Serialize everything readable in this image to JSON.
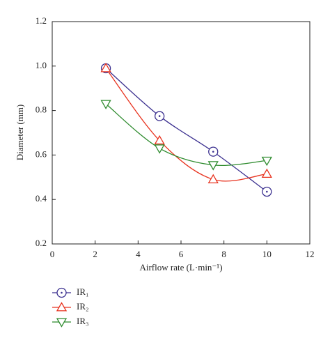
{
  "chart_data": {
    "type": "line",
    "xlabel": "Airflow rate (L·min⁻¹)",
    "ylabel": "Diameter (mm)",
    "x": [
      2.5,
      5,
      7.5,
      10
    ],
    "series": [
      {
        "name": "IR₁",
        "color": "#3a2f8f",
        "marker": "circle-dot",
        "values": [
          0.99,
          0.775,
          0.615,
          0.435
        ]
      },
      {
        "name": "IR₂",
        "color": "#e8321e",
        "marker": "triangle-up",
        "values": [
          0.99,
          0.665,
          0.49,
          0.515
        ]
      },
      {
        "name": "IR₃",
        "color": "#2e8b2e",
        "marker": "triangle-down",
        "values": [
          0.83,
          0.63,
          0.555,
          0.575
        ]
      }
    ],
    "xlim": [
      0,
      12
    ],
    "xticks": [
      0,
      2,
      4,
      6,
      8,
      10,
      12
    ],
    "ylim": [
      0.2,
      1.2
    ],
    "yticks": [
      0.2,
      0.4,
      0.6,
      0.8,
      {
        "value": 1.0,
        "label": "1.0"
      },
      1.2
    ],
    "smooth": true,
    "legend": "bottom-left"
  }
}
